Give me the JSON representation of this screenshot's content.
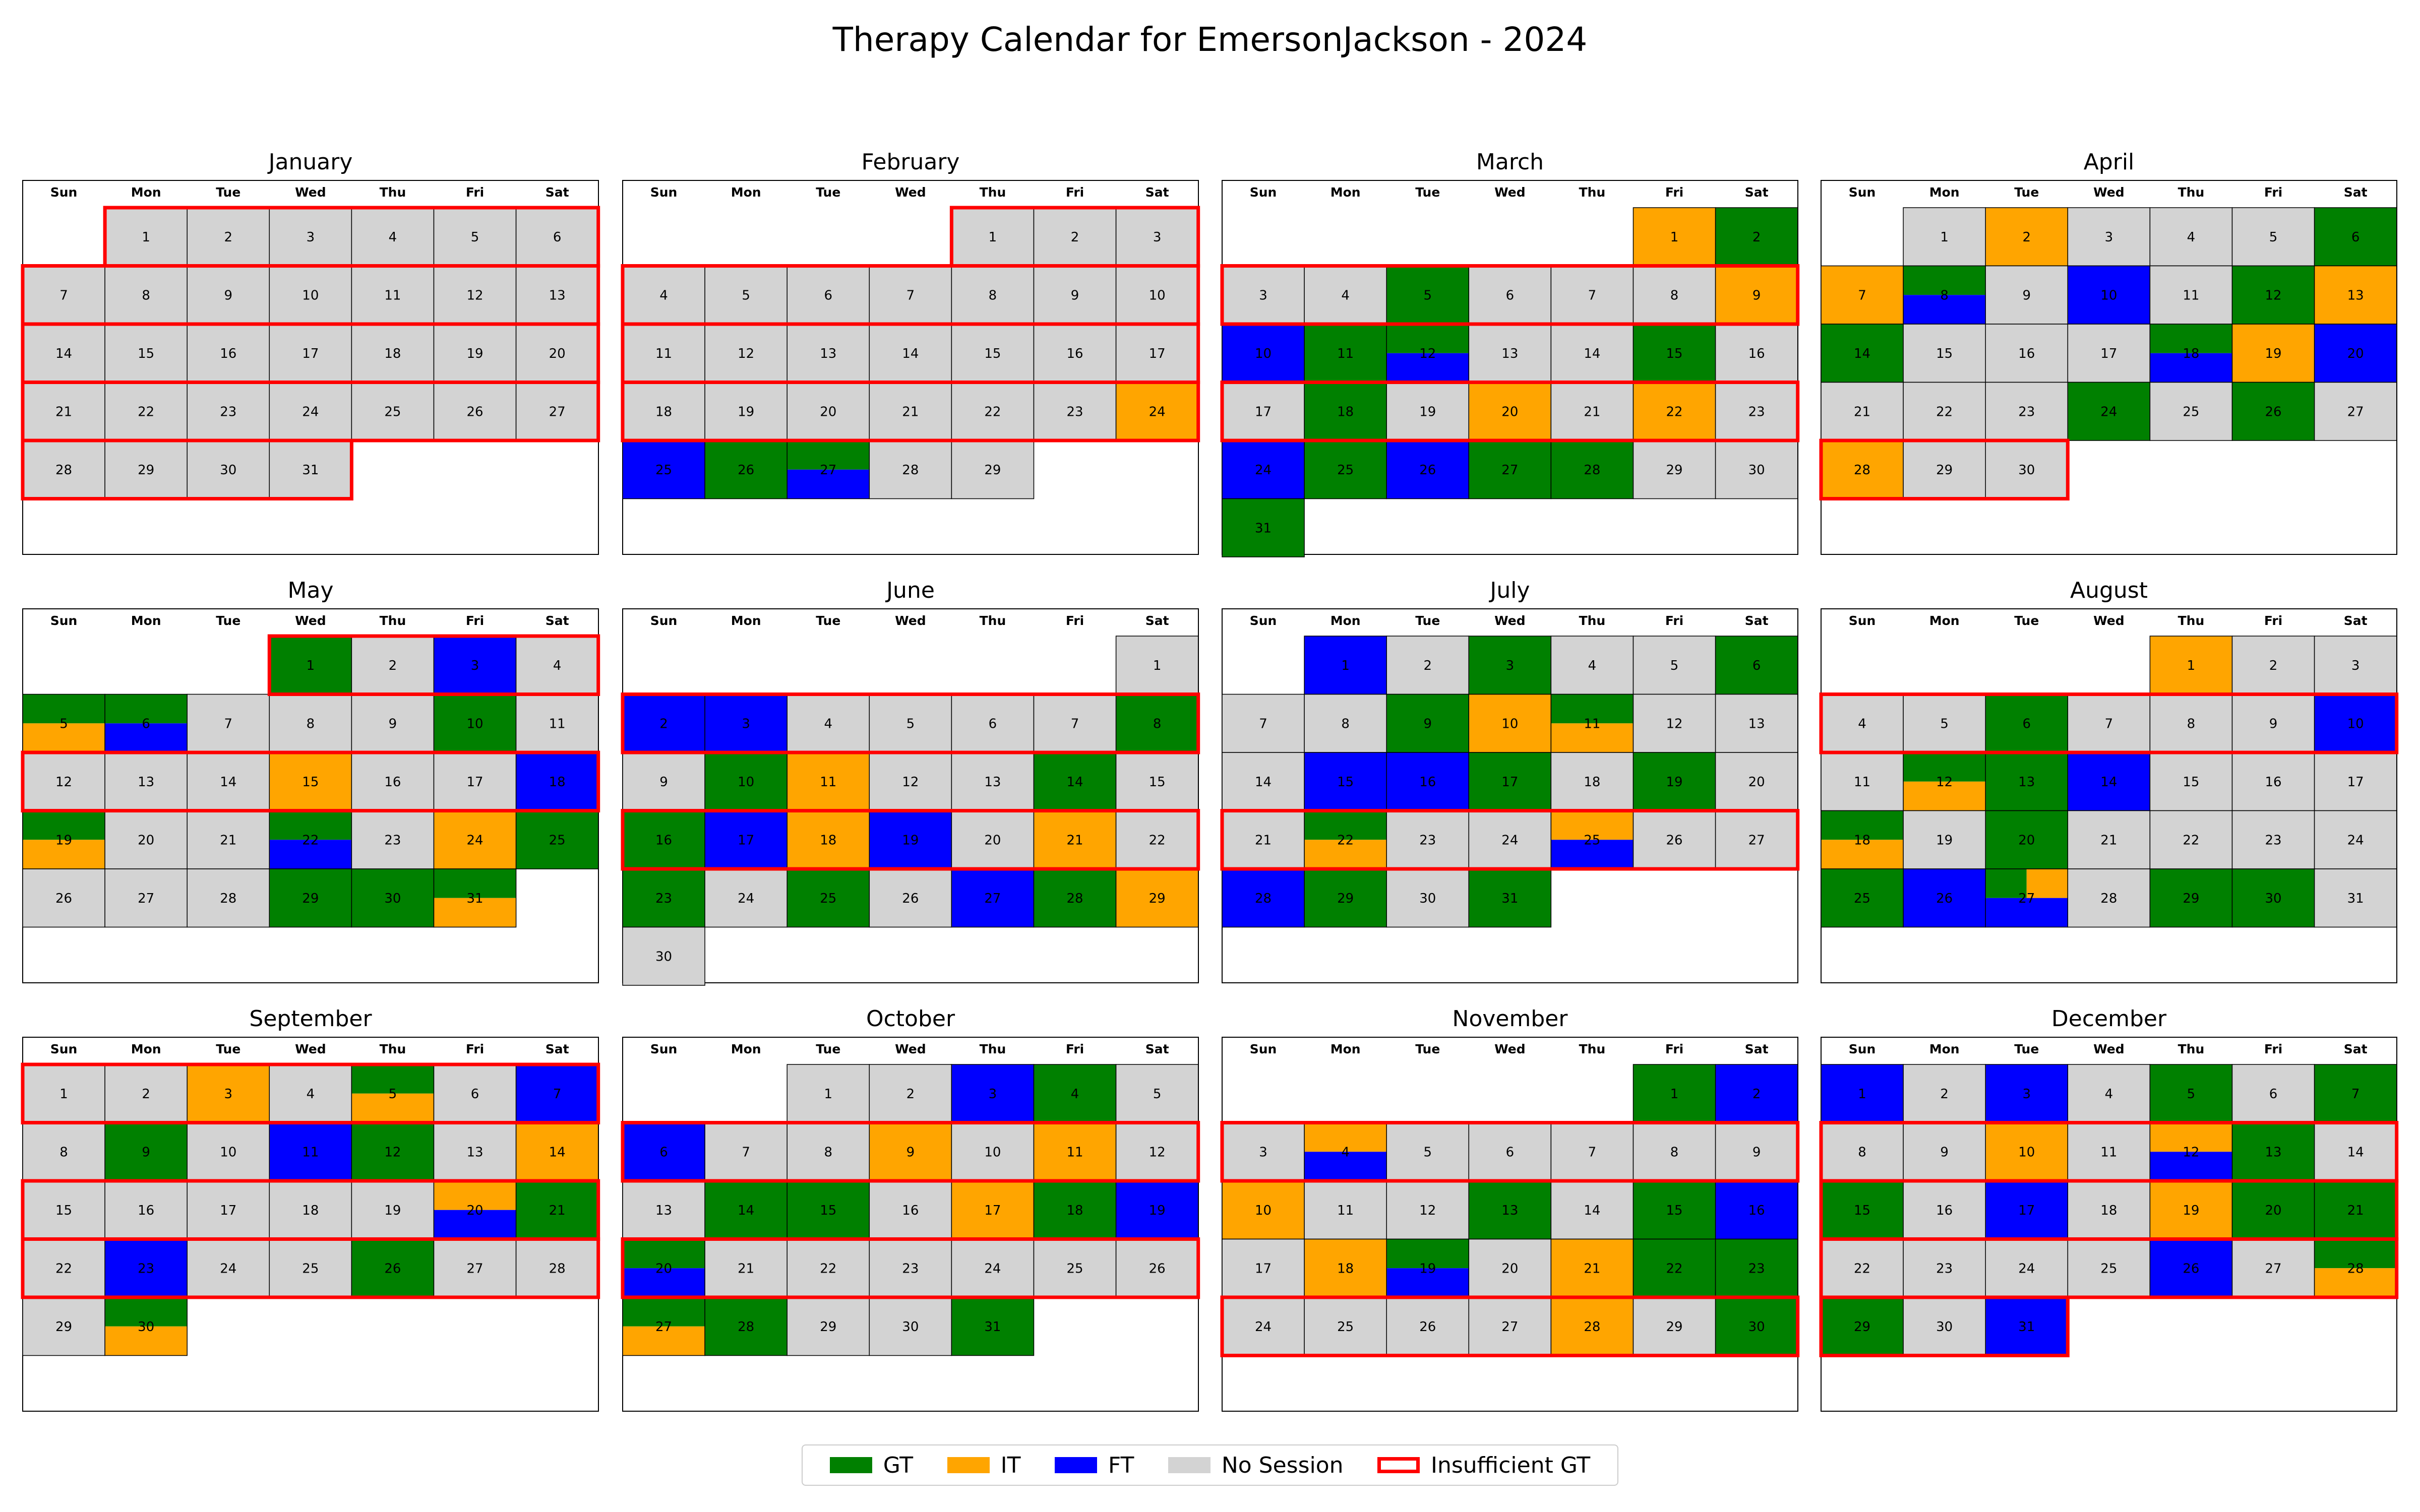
{
  "chart_data": {
    "type": "heatmap",
    "title": "Therapy Calendar for EmersonJackson - 2024",
    "year": 2024,
    "weekday_labels": [
      "Sun",
      "Mon",
      "Tue",
      "Wed",
      "Thu",
      "Fri",
      "Sat"
    ],
    "colors": {
      "GT": "#008000",
      "IT": "#FFA500",
      "FT": "#0000FF",
      "No Session": "#D3D3D3",
      "Insufficient GT": "#FF0000"
    },
    "legend": [
      {
        "key": "GT",
        "label": "GT"
      },
      {
        "key": "IT",
        "label": "IT"
      },
      {
        "key": "FT",
        "label": "FT"
      },
      {
        "key": "No Session",
        "label": "No Session"
      },
      {
        "key": "Insufficient GT",
        "label": "Insufficient GT",
        "style": "outline"
      }
    ],
    "months": [
      {
        "name": "January",
        "first_weekday": 1,
        "days": 31,
        "sessions": {},
        "insufficient_weeks": [
          0,
          1,
          2,
          3,
          4
        ]
      },
      {
        "name": "February",
        "first_weekday": 4,
        "days": 29,
        "sessions": {
          "24": [
            "IT"
          ],
          "25": [
            "FT"
          ],
          "26": [
            "GT"
          ],
          "27": [
            "GT",
            "FT"
          ]
        },
        "insufficient_weeks": [
          0,
          1,
          2,
          3
        ]
      },
      {
        "name": "March",
        "first_weekday": 5,
        "days": 31,
        "sessions": {
          "1": [
            "IT"
          ],
          "2": [
            "GT"
          ],
          "5": [
            "GT"
          ],
          "9": [
            "IT"
          ],
          "10": [
            "FT"
          ],
          "11": [
            "GT"
          ],
          "12": [
            "GT",
            "FT"
          ],
          "15": [
            "GT"
          ],
          "18": [
            "GT"
          ],
          "20": [
            "IT"
          ],
          "22": [
            "IT"
          ],
          "24": [
            "FT"
          ],
          "25": [
            "GT"
          ],
          "26": [
            "FT"
          ],
          "27": [
            "GT"
          ],
          "28": [
            "GT"
          ],
          "31": [
            "GT"
          ]
        },
        "insufficient_weeks": [
          1,
          3
        ]
      },
      {
        "name": "April",
        "first_weekday": 1,
        "days": 30,
        "sessions": {
          "2": [
            "IT"
          ],
          "6": [
            "GT"
          ],
          "7": [
            "IT"
          ],
          "8": [
            "GT",
            "FT"
          ],
          "10": [
            "FT"
          ],
          "12": [
            "GT"
          ],
          "13": [
            "IT"
          ],
          "14": [
            "GT"
          ],
          "18": [
            "GT",
            "FT"
          ],
          "19": [
            "IT"
          ],
          "20": [
            "FT"
          ],
          "24": [
            "GT"
          ],
          "26": [
            "GT"
          ],
          "28": [
            "IT"
          ]
        },
        "insufficient_weeks": [
          4
        ]
      },
      {
        "name": "May",
        "first_weekday": 3,
        "days": 31,
        "sessions": {
          "1": [
            "GT"
          ],
          "3": [
            "FT"
          ],
          "5": [
            "GT",
            "IT"
          ],
          "6": [
            "GT",
            "FT"
          ],
          "10": [
            "GT"
          ],
          "15": [
            "IT"
          ],
          "18": [
            "FT"
          ],
          "19": [
            "GT",
            "IT"
          ],
          "22": [
            "GT",
            "FT"
          ],
          "24": [
            "IT"
          ],
          "25": [
            "GT"
          ],
          "29": [
            "GT"
          ],
          "30": [
            "GT"
          ],
          "31": [
            "GT",
            "IT"
          ]
        },
        "insufficient_weeks": [
          0,
          2
        ]
      },
      {
        "name": "June",
        "first_weekday": 6,
        "days": 30,
        "sessions": {
          "2": [
            "FT"
          ],
          "3": [
            "FT"
          ],
          "8": [
            "GT"
          ],
          "10": [
            "GT"
          ],
          "11": [
            "IT"
          ],
          "14": [
            "GT"
          ],
          "16": [
            "GT"
          ],
          "17": [
            "FT"
          ],
          "18": [
            "IT"
          ],
          "19": [
            "FT"
          ],
          "21": [
            "IT"
          ],
          "23": [
            "GT"
          ],
          "25": [
            "GT"
          ],
          "27": [
            "FT"
          ],
          "28": [
            "GT"
          ],
          "29": [
            "IT"
          ]
        },
        "insufficient_weeks": [
          1,
          3
        ]
      },
      {
        "name": "July",
        "first_weekday": 1,
        "days": 31,
        "sessions": {
          "1": [
            "FT"
          ],
          "3": [
            "GT"
          ],
          "6": [
            "GT"
          ],
          "9": [
            "GT"
          ],
          "10": [
            "IT"
          ],
          "11": [
            "GT",
            "IT"
          ],
          "15": [
            "FT"
          ],
          "16": [
            "FT"
          ],
          "17": [
            "GT"
          ],
          "19": [
            "GT"
          ],
          "22": [
            "GT",
            "IT"
          ],
          "25": [
            "IT",
            "FT"
          ],
          "28": [
            "FT"
          ],
          "29": [
            "GT"
          ],
          "31": [
            "GT"
          ]
        },
        "insufficient_weeks": [
          3
        ]
      },
      {
        "name": "August",
        "first_weekday": 4,
        "days": 31,
        "sessions": {
          "1": [
            "IT"
          ],
          "6": [
            "GT"
          ],
          "10": [
            "FT"
          ],
          "12": [
            "GT",
            "IT"
          ],
          "13": [
            "GT"
          ],
          "14": [
            "FT"
          ],
          "18": [
            "GT",
            "IT"
          ],
          "20": [
            "GT"
          ],
          "25": [
            "GT"
          ],
          "26": [
            "FT"
          ],
          "27": [
            "GT",
            "IT",
            "FT"
          ],
          "29": [
            "GT"
          ],
          "30": [
            "GT"
          ]
        },
        "insufficient_weeks": [
          1
        ]
      },
      {
        "name": "September",
        "first_weekday": 0,
        "days": 30,
        "sessions": {
          "3": [
            "IT"
          ],
          "5": [
            "GT",
            "IT"
          ],
          "7": [
            "FT"
          ],
          "9": [
            "GT"
          ],
          "11": [
            "FT"
          ],
          "12": [
            "GT"
          ],
          "14": [
            "IT"
          ],
          "20": [
            "IT",
            "FT"
          ],
          "21": [
            "GT"
          ],
          "23": [
            "FT"
          ],
          "26": [
            "GT"
          ],
          "30": [
            "GT",
            "IT"
          ]
        },
        "insufficient_weeks": [
          0,
          2,
          3
        ]
      },
      {
        "name": "October",
        "first_weekday": 2,
        "days": 31,
        "sessions": {
          "3": [
            "FT"
          ],
          "4": [
            "GT"
          ],
          "6": [
            "FT"
          ],
          "9": [
            "IT"
          ],
          "11": [
            "IT"
          ],
          "14": [
            "GT"
          ],
          "15": [
            "GT"
          ],
          "17": [
            "IT"
          ],
          "18": [
            "GT"
          ],
          "19": [
            "FT"
          ],
          "20": [
            "GT",
            "FT"
          ],
          "27": [
            "GT",
            "IT"
          ],
          "28": [
            "GT"
          ],
          "31": [
            "GT"
          ]
        },
        "insufficient_weeks": [
          1,
          3
        ]
      },
      {
        "name": "November",
        "first_weekday": 5,
        "days": 30,
        "sessions": {
          "1": [
            "GT"
          ],
          "2": [
            "FT"
          ],
          "4": [
            "IT",
            "FT"
          ],
          "10": [
            "IT"
          ],
          "13": [
            "GT"
          ],
          "15": [
            "GT"
          ],
          "16": [
            "FT"
          ],
          "18": [
            "IT"
          ],
          "19": [
            "GT",
            "FT"
          ],
          "21": [
            "IT"
          ],
          "22": [
            "GT"
          ],
          "23": [
            "GT"
          ],
          "28": [
            "IT"
          ],
          "30": [
            "GT"
          ]
        },
        "insufficient_weeks": [
          1,
          4
        ]
      },
      {
        "name": "December",
        "first_weekday": 0,
        "days": 31,
        "sessions": {
          "1": [
            "FT"
          ],
          "3": [
            "FT"
          ],
          "5": [
            "GT"
          ],
          "7": [
            "GT"
          ],
          "10": [
            "IT"
          ],
          "12": [
            "IT",
            "FT"
          ],
          "13": [
            "GT"
          ],
          "15": [
            "GT"
          ],
          "17": [
            "FT"
          ],
          "19": [
            "IT"
          ],
          "20": [
            "GT"
          ],
          "21": [
            "GT"
          ],
          "26": [
            "FT"
          ],
          "28": [
            "GT",
            "IT"
          ],
          "29": [
            "GT"
          ],
          "31": [
            "FT"
          ]
        },
        "insufficient_weeks": [
          1,
          2,
          3,
          4
        ]
      }
    ]
  }
}
